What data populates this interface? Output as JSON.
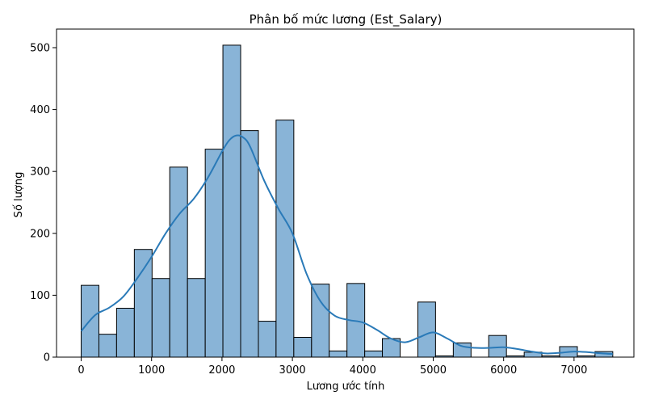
{
  "chart_data": {
    "type": "bar",
    "title": "Phân bố mức lương (Est_Salary)",
    "xlabel": "Lương ước tính",
    "ylabel": "Số lượng",
    "xlim": [
      -350,
      7850
    ],
    "ylim": [
      0,
      530
    ],
    "xticks": [
      0,
      1000,
      2000,
      3000,
      4000,
      5000,
      6000,
      7000
    ],
    "yticks": [
      0,
      100,
      200,
      300,
      400,
      500
    ],
    "bin_edges": [
      0,
      252,
      503,
      755,
      1007,
      1258,
      1510,
      1762,
      2013,
      2265,
      2517,
      2768,
      3020,
      3272,
      3523,
      3775,
      4027,
      4278,
      4530,
      4782,
      5033,
      5285,
      5537,
      5788,
      6040,
      6292,
      6543,
      6795,
      7047,
      7298,
      7550
    ],
    "values": [
      116,
      37,
      79,
      174,
      127,
      307,
      127,
      336,
      504,
      366,
      58,
      383,
      32,
      118,
      10,
      119,
      10,
      30,
      0,
      89,
      2,
      23,
      0,
      35,
      2,
      8,
      2,
      17,
      2,
      9
    ],
    "bar_color": "#89b4d7",
    "bar_edge_color": "#000000",
    "kde_color": "#2a7ab8",
    "kde": {
      "x": [
        0,
        200,
        400,
        600,
        800,
        1000,
        1200,
        1400,
        1600,
        1800,
        2000,
        2100,
        2200,
        2300,
        2400,
        2600,
        2800,
        3000,
        3200,
        3400,
        3600,
        3800,
        4000,
        4200,
        4400,
        4600,
        4800,
        5000,
        5200,
        5400,
        5600,
        5800,
        6000,
        6200,
        6400,
        6600,
        6800,
        7000,
        7200,
        7400,
        7550
      ],
      "y": [
        42,
        68,
        80,
        98,
        128,
        162,
        200,
        232,
        256,
        290,
        332,
        350,
        358,
        355,
        340,
        285,
        240,
        200,
        135,
        90,
        67,
        60,
        56,
        44,
        30,
        24,
        32,
        40,
        30,
        18,
        15,
        15,
        16,
        13,
        9,
        6,
        7,
        9,
        8,
        6,
        5
      ]
    },
    "grid": false,
    "legend": "none"
  }
}
